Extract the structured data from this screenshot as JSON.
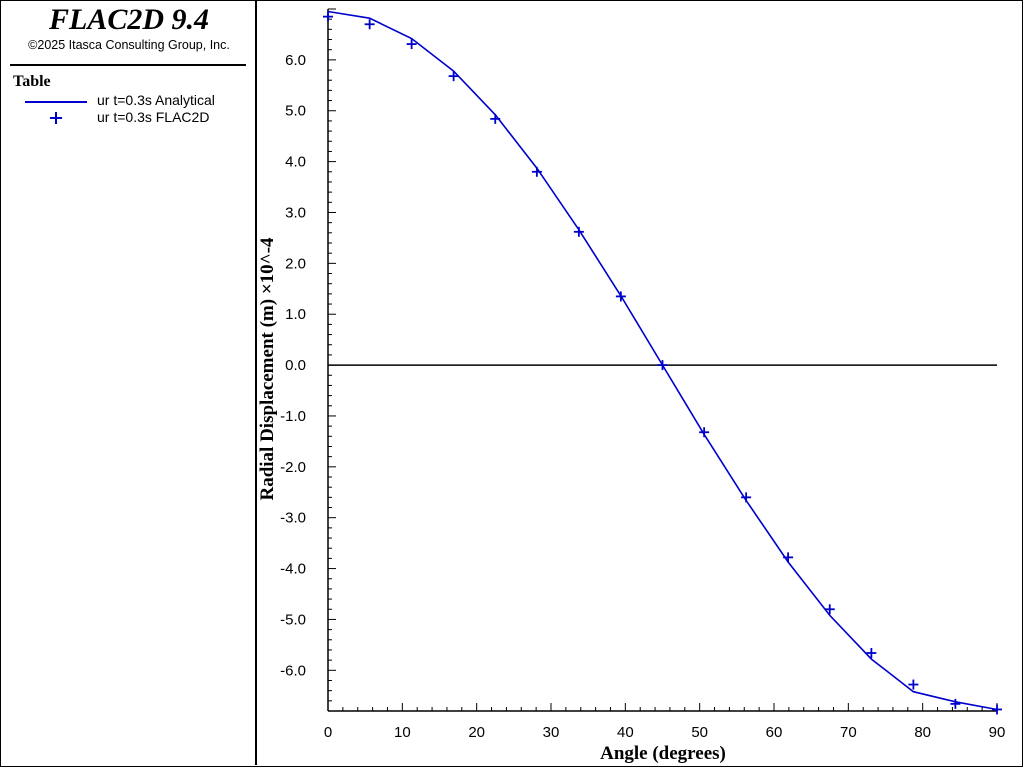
{
  "header": {
    "app_title": "FLAC2D 9.4",
    "copyright": "©2025 Itasca Consulting Group, Inc."
  },
  "legend": {
    "heading": "Table",
    "items": [
      {
        "label": "ur t=0.3s Analytical",
        "symbol": "line",
        "color": "#0000cc"
      },
      {
        "label": "ur t=0.3s FLAC2D",
        "symbol": "plus",
        "color": "#0000cc"
      }
    ]
  },
  "chart_data": {
    "type": "line",
    "xlabel": "Angle (degrees)",
    "ylabel": "Radial Displacement (m) ×10^-4",
    "xlim": [
      0,
      90
    ],
    "ylim": [
      -6.8,
      7.0
    ],
    "x_ticks": [
      0,
      10,
      20,
      30,
      40,
      50,
      60,
      70,
      80,
      90
    ],
    "x_tick_labels": [
      "0",
      "10",
      "20",
      "30",
      "40",
      "50",
      "60",
      "70",
      "80",
      "90"
    ],
    "y_ticks": [
      6,
      5,
      4,
      3,
      2,
      1,
      0,
      -1,
      -2,
      -3,
      -4,
      -5,
      -6
    ],
    "y_tick_labels": [
      "6.0",
      "5.0",
      "4.0",
      "3.0",
      "2.0",
      "1.0",
      "0.0",
      "-1.0",
      "-2.0",
      "-3.0",
      "-4.0",
      "-5.0",
      "-6.0"
    ],
    "zero_line": true,
    "grid": false,
    "series": [
      {
        "name": "ur t=0.3s Analytical",
        "style": "line",
        "color": "#0000cc",
        "x": [
          0,
          5.6,
          11.25,
          16.9,
          22.5,
          28.1,
          33.75,
          39.4,
          45,
          50.6,
          56.25,
          61.9,
          67.5,
          73.1,
          78.75,
          84.4,
          90
        ],
        "y": [
          6.95,
          6.82,
          6.42,
          5.78,
          4.92,
          3.87,
          2.66,
          1.36,
          0.0,
          -1.36,
          -2.66,
          -3.87,
          -4.92,
          -5.78,
          -6.42,
          -6.62,
          -6.77
        ]
      },
      {
        "name": "ur t=0.3s FLAC2D",
        "style": "plus",
        "color": "#0000cc",
        "x": [
          0,
          5.6,
          11.25,
          16.9,
          22.5,
          28.1,
          33.75,
          39.4,
          45,
          50.6,
          56.25,
          61.9,
          67.5,
          73.1,
          78.75,
          84.4,
          90
        ],
        "y": [
          6.85,
          6.7,
          6.31,
          5.68,
          4.84,
          3.8,
          2.62,
          1.35,
          0.0,
          -1.32,
          -2.6,
          -3.78,
          -4.8,
          -5.66,
          -6.28,
          -6.66,
          -6.77
        ]
      }
    ]
  }
}
